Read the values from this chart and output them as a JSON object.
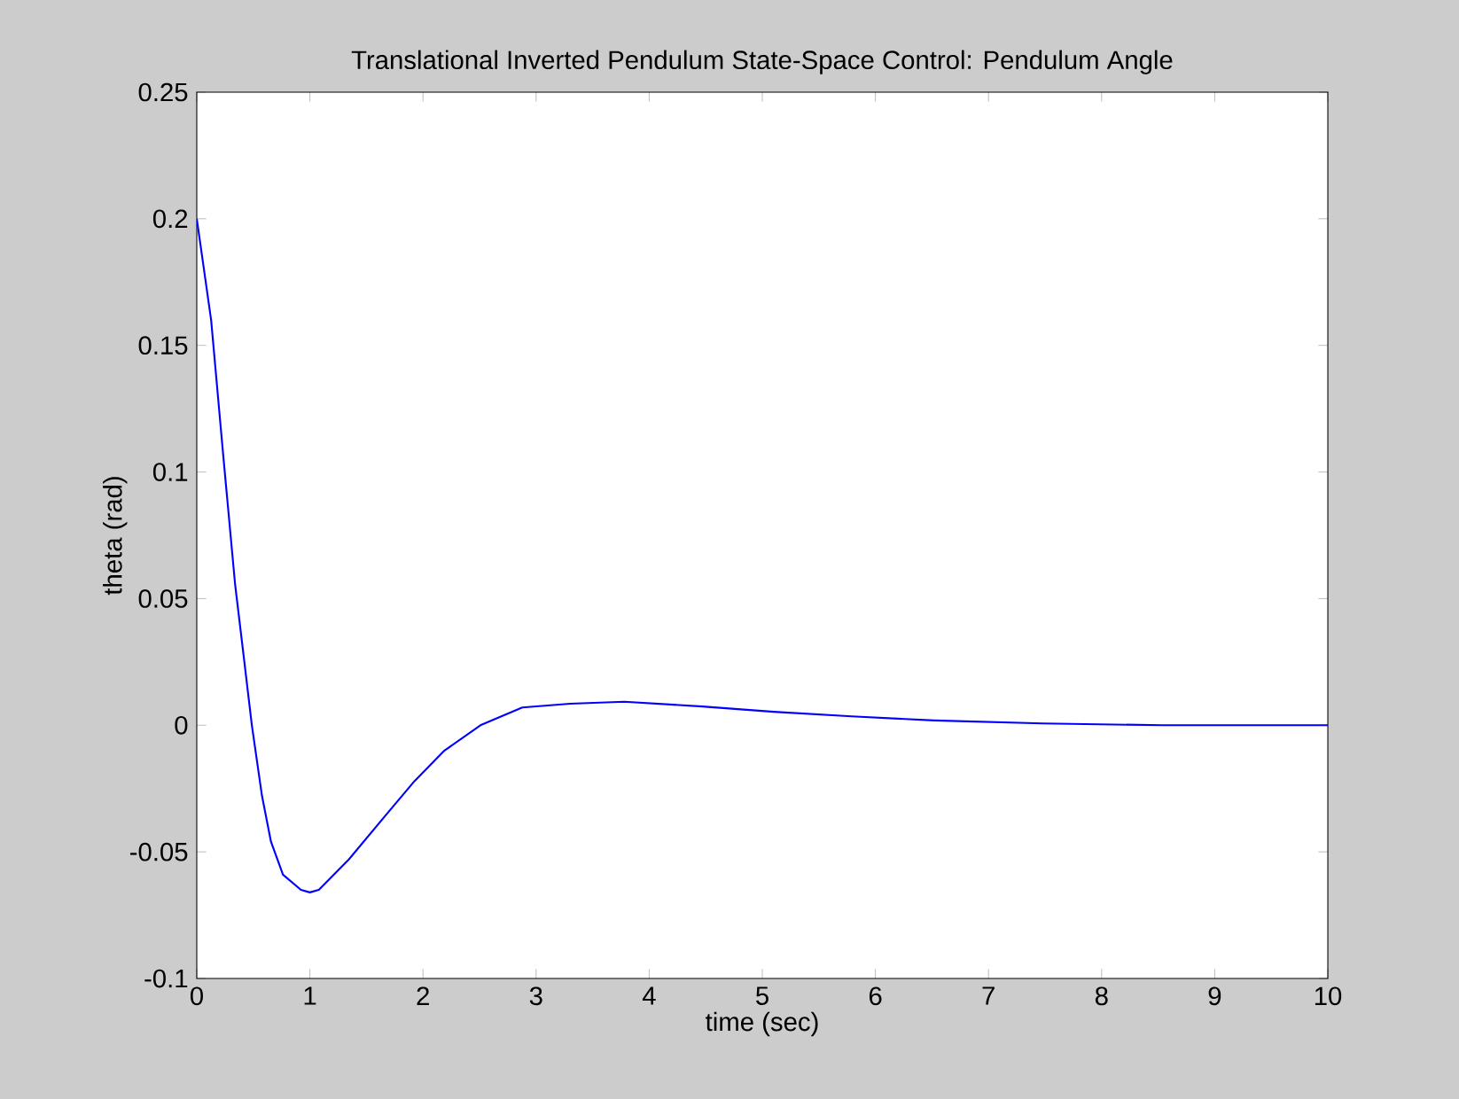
{
  "chart_data": {
    "type": "line",
    "title": "Translational Inverted Pendulum State-Space Control: Pendulum Angle",
    "xlabel": "time (sec)",
    "ylabel": "theta (rad)",
    "x": [
      0,
      0.127,
      0.233,
      0.338,
      0.418,
      0.487,
      0.577,
      0.656,
      0.762,
      0.921,
      1.0,
      1.079,
      1.344,
      1.662,
      1.926,
      2.19,
      2.508,
      2.878,
      3.3,
      3.78,
      4.47,
      5.1,
      5.79,
      6.52,
      7.48,
      8.54,
      10
    ],
    "series": [
      {
        "color": "#0000ff",
        "values": [
          0.2,
          0.16,
          0.107,
          0.056,
          0.026,
          0,
          -0.028,
          -0.046,
          -0.059,
          -0.065,
          -0.066,
          -0.065,
          -0.053,
          -0.036,
          -0.022,
          -0.01,
          0,
          0.007,
          0.0085,
          0.0093,
          0.0074,
          0.0053,
          0.0035,
          0.0019,
          0.0007,
          0,
          0
        ]
      }
    ],
    "xlim": [
      0,
      10
    ],
    "ylim": [
      -0.1,
      0.25
    ],
    "xticks": [
      0,
      1,
      2,
      3,
      4,
      5,
      6,
      7,
      8,
      9,
      10
    ],
    "yticks": [
      -0.1,
      -0.05,
      0,
      0.05,
      0.1,
      0.15,
      0.2,
      0.25
    ],
    "grid": false,
    "marker": "none",
    "line_style": "solid"
  }
}
